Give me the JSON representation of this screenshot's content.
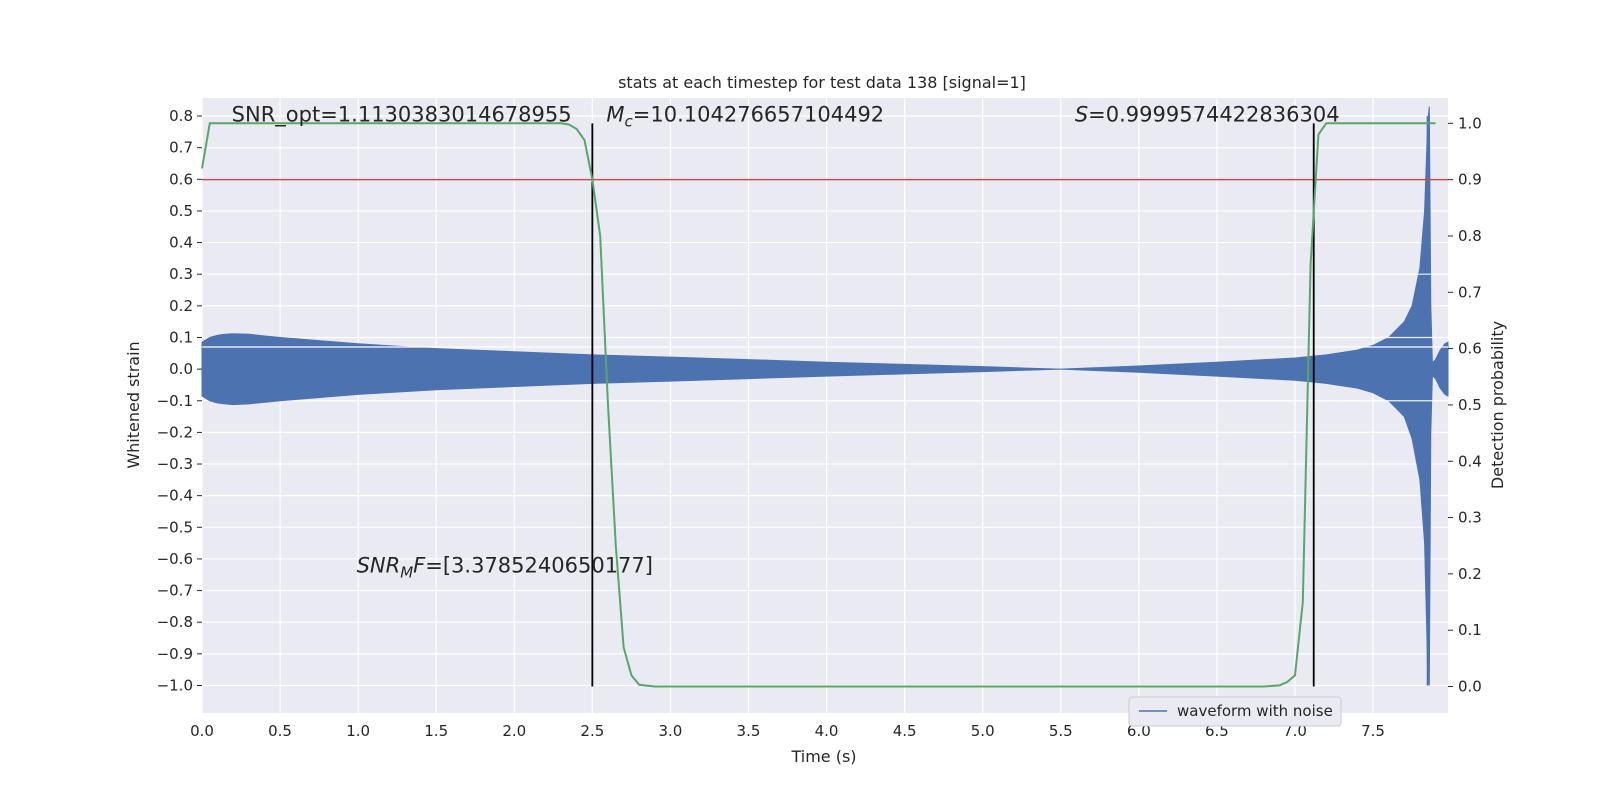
{
  "chart_data": {
    "type": "line",
    "title": "stats at each timestep for test data 138 [signal=1]",
    "xlabel": "Time (s)",
    "ylabel": "Whitened strain",
    "y2label": "Detection probability",
    "xlim": [
      0.0,
      7.98
    ],
    "ylim": [
      -1.087,
      0.857
    ],
    "y2lim": [
      -0.047,
      1.045
    ],
    "x_ticks": [
      0.0,
      0.5,
      1.0,
      1.5,
      2.0,
      2.5,
      3.0,
      3.5,
      4.0,
      4.5,
      5.0,
      5.5,
      6.0,
      6.5,
      7.0,
      7.5
    ],
    "x_tick_labels": [
      "0.0",
      "0.5",
      "1.0",
      "1.5",
      "2.0",
      "2.5",
      "3.0",
      "3.5",
      "4.0",
      "4.5",
      "5.0",
      "5.5",
      "6.0",
      "6.5",
      "7.0",
      "7.5"
    ],
    "y_ticks": [
      0.8,
      0.7,
      0.6,
      0.5,
      0.4,
      0.3,
      0.2,
      0.1,
      0.0,
      -0.1,
      -0.2,
      -0.3,
      -0.4,
      -0.5,
      -0.6,
      -0.7,
      -0.8,
      -0.9,
      -1.0
    ],
    "y_tick_labels": [
      "0.8",
      "0.7",
      "0.6",
      "0.5",
      "0.4",
      "0.3",
      "0.2",
      "0.1",
      "0.0",
      "−0.1",
      "−0.2",
      "−0.3",
      "−0.4",
      "−0.5",
      "−0.6",
      "−0.7",
      "−0.8",
      "−0.9",
      "−1.0"
    ],
    "y2_ticks": [
      1.0,
      0.9,
      0.8,
      0.7,
      0.6,
      0.5,
      0.4,
      0.3,
      0.2,
      0.1,
      0.0
    ],
    "y2_tick_labels": [
      "1.0",
      "0.9",
      "0.8",
      "0.7",
      "0.6",
      "0.5",
      "0.4",
      "0.3",
      "0.2",
      "0.1",
      "0.0"
    ],
    "grid": true,
    "legend_placement": "lower-right",
    "legend": [
      "waveform with noise"
    ],
    "colors": {
      "background": "#eaeaf2",
      "grid": "#ffffff",
      "waveform": "#4c72b0",
      "probability": "#55a868",
      "threshold": "#c44e52",
      "markers": "#000000"
    },
    "waveform_envelope": {
      "x": [
        0.0,
        0.05,
        0.1,
        0.15,
        0.2,
        0.3,
        0.5,
        1.0,
        1.5,
        2.0,
        2.5,
        3.0,
        3.5,
        4.0,
        4.5,
        5.0,
        5.3,
        5.5,
        5.7,
        6.0,
        6.5,
        7.0,
        7.2,
        7.4,
        7.5,
        7.6,
        7.7,
        7.75,
        7.8,
        7.83,
        7.85,
        7.86,
        7.87,
        7.88,
        7.9,
        7.93,
        7.96,
        7.98
      ],
      "upper": [
        0.085,
        0.1,
        0.107,
        0.11,
        0.112,
        0.11,
        0.1,
        0.08,
        0.065,
        0.055,
        0.045,
        0.038,
        0.03,
        0.022,
        0.015,
        0.008,
        0.003,
        0.0,
        0.004,
        0.01,
        0.022,
        0.035,
        0.045,
        0.06,
        0.075,
        0.1,
        0.15,
        0.2,
        0.32,
        0.5,
        0.78,
        0.83,
        0.2,
        0.02,
        0.03,
        0.06,
        0.08,
        0.085
      ],
      "lower": [
        -0.085,
        -0.1,
        -0.107,
        -0.11,
        -0.112,
        -0.11,
        -0.1,
        -0.08,
        -0.065,
        -0.055,
        -0.045,
        -0.038,
        -0.03,
        -0.022,
        -0.015,
        -0.008,
        -0.003,
        0.0,
        -0.004,
        -0.01,
        -0.022,
        -0.035,
        -0.045,
        -0.06,
        -0.075,
        -0.1,
        -0.15,
        -0.22,
        -0.35,
        -0.55,
        -0.95,
        -1.0,
        -0.2,
        -0.02,
        -0.03,
        -0.06,
        -0.08,
        -0.085
      ]
    },
    "series": [
      {
        "axis": "right",
        "x": [
          0.0,
          0.05,
          2.3,
          2.35,
          2.4,
          2.45,
          2.5,
          2.55,
          2.6,
          2.65,
          2.7,
          2.75,
          2.8,
          2.9,
          3.0,
          6.8,
          6.9,
          6.95,
          7.0,
          7.05,
          7.1,
          7.15,
          7.2,
          7.25,
          7.3,
          7.9
        ],
        "values": [
          0.92,
          1.0,
          1.0,
          0.998,
          0.99,
          0.97,
          0.9,
          0.8,
          0.5,
          0.25,
          0.07,
          0.02,
          0.003,
          0.0,
          0.0,
          0.0,
          0.002,
          0.008,
          0.02,
          0.15,
          0.75,
          0.98,
          1.0,
          1.0,
          1.0,
          1.0
        ]
      }
    ],
    "threshold_y2": 0.9,
    "vlines_x": [
      2.5,
      7.12
    ],
    "spike_x": 7.85,
    "annotations": [
      {
        "x": 0.19,
        "y": 0.782,
        "text": "SNR_opt=1.1130383014678955"
      },
      {
        "x": 2.59,
        "y": 0.782,
        "text": "M_c=10.104276657104492"
      },
      {
        "x": 5.59,
        "y": 0.782,
        "text": "S=0.9999574422836304"
      },
      {
        "x": 0.99,
        "y": -0.643,
        "text": "SNR_MF=[3.3785240650177]"
      }
    ],
    "annotation_display": {
      "mc_main": "M",
      "mc_sub": "c",
      "mc_rest": "=10.104276657104492",
      "s_main": "S",
      "s_rest": "=0.9999574422836304",
      "snrmf_main": "SNR",
      "snrmf_sub": "M",
      "snrmf_rest": "F=[3.3785240650177]"
    }
  }
}
